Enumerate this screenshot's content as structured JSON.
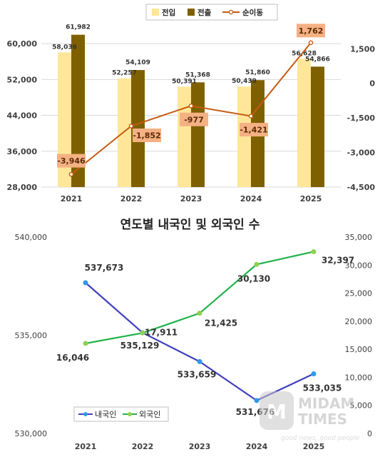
{
  "chart_data": [
    {
      "type": "bar",
      "title": "",
      "categories": [
        "2021",
        "2022",
        "2023",
        "2024",
        "2025"
      ],
      "legend": {
        "position": "top",
        "labels": [
          "전입",
          "전출",
          "순이동"
        ]
      },
      "left_axis": {
        "ylim": [
          28000,
          64000
        ],
        "ticks": [
          28000,
          36000,
          44000,
          52000,
          60000
        ],
        "tick_labels": [
          "28,000",
          "36,000",
          "44,000",
          "52,000",
          "60,000"
        ]
      },
      "right_axis": {
        "ylim": [
          -4500,
          2500
        ],
        "ticks": [
          -4500,
          -3000,
          -1500,
          0,
          1500
        ],
        "tick_labels": [
          "-4,500",
          "-3,000",
          "-1,500",
          "0",
          "1,500"
        ]
      },
      "series": [
        {
          "name": "전입",
          "type": "bar",
          "axis": "left",
          "color": "#FFE699",
          "values": [
            58036,
            52257,
            50391,
            50439,
            56628
          ],
          "labels": [
            "58,036",
            "52,257",
            "50,391",
            "50,439",
            "56,628"
          ]
        },
        {
          "name": "전출",
          "type": "bar",
          "axis": "left",
          "color": "#7F6000",
          "values": [
            61982,
            54109,
            51368,
            51860,
            54866
          ],
          "labels": [
            "61,982",
            "54,109",
            "51,368",
            "51,860",
            "54,866"
          ]
        },
        {
          "name": "순이동",
          "type": "line",
          "axis": "right",
          "color": "#C55A11",
          "label_bg": "#F4B183",
          "values": [
            -3946,
            -1852,
            -977,
            -1421,
            1762
          ],
          "labels": [
            "-3,946",
            "-1,852",
            "-977",
            "-1,421",
            "1,762"
          ]
        }
      ]
    },
    {
      "type": "line",
      "title": "연도별 내국인 및 외국인 수",
      "categories": [
        "2021",
        "2022",
        "2023",
        "2024",
        "2025"
      ],
      "legend": {
        "position": "bottom-left",
        "labels": [
          "내국인",
          "외국인"
        ]
      },
      "left_axis": {
        "ylim": [
          530000,
          540000
        ],
        "ticks": [
          530000,
          535000,
          540000
        ],
        "tick_labels": [
          "530,000",
          "535,000",
          "540,000"
        ]
      },
      "right_axis": {
        "ylim": [
          0,
          35000
        ],
        "ticks": [
          0,
          5000,
          10000,
          15000,
          20000,
          25000,
          30000,
          35000
        ],
        "tick_labels": [
          "0",
          "5,000",
          "10,000",
          "15,000",
          "20,000",
          "25,000",
          "30,000",
          "35,000"
        ]
      },
      "series": [
        {
          "name": "내국인",
          "axis": "left",
          "color": "#4040C0",
          "marker_color": "#2E9BE6",
          "values": [
            537673,
            535129,
            533659,
            531676,
            533035
          ],
          "labels": [
            "537,673",
            "535,129",
            "533,659",
            "531,676",
            "533,035"
          ]
        },
        {
          "name": "외국인",
          "axis": "right",
          "color": "#21B24A",
          "marker_color": "#8FD14F",
          "values": [
            16046,
            17911,
            21425,
            30130,
            32397
          ],
          "labels": [
            "16,046",
            "17,911",
            "21,425",
            "30,130",
            "32,397"
          ]
        }
      ]
    }
  ],
  "watermark": {
    "name": "MIDAM TIMES",
    "tagline": "good news, good people"
  }
}
